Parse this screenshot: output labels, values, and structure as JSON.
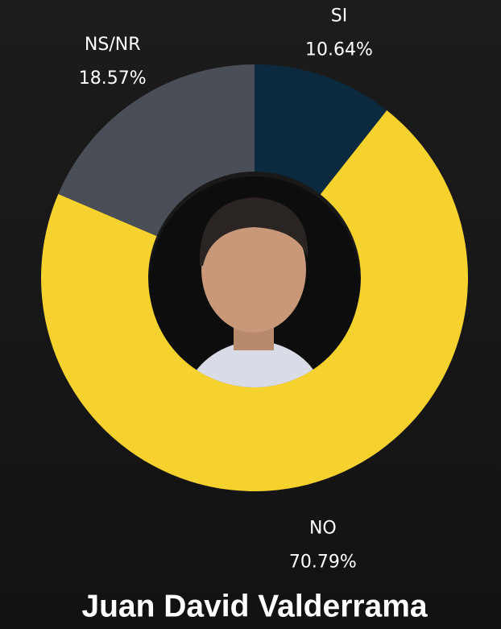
{
  "chart_data": {
    "type": "pie",
    "title": "Juan David Valderrama",
    "categories": [
      "SI",
      "NO",
      "NS/NR"
    ],
    "values": [
      10.64,
      70.79,
      18.57
    ],
    "value_labels": [
      "10.64%",
      "70.79%",
      "18.57%"
    ],
    "colors": [
      "#0c2a3f",
      "#f6d22e",
      "#4a4e56"
    ]
  }
}
